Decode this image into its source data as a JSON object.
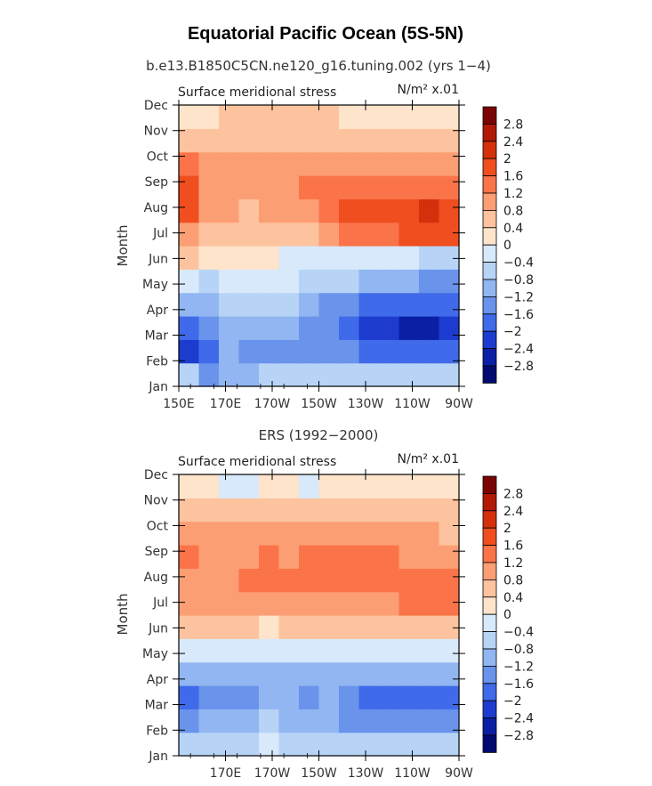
{
  "figure": {
    "title": "Equatorial Pacific Ocean (5S-5N)"
  },
  "colorbar": {
    "levels": [
      "2.8",
      "2.4",
      "2",
      "1.6",
      "1.2",
      "0.8",
      "0.4",
      "0",
      "−0.4",
      "−0.8",
      "−1.2",
      "−1.6",
      "−2",
      "−2.4",
      "−2.8"
    ],
    "colors": [
      "#7a0403",
      "#b01a06",
      "#d4300c",
      "#f04e1e",
      "#fb7348",
      "#fc9e74",
      "#fdc39e",
      "#fde4cb",
      "#d8e9fb",
      "#b7d4f6",
      "#91b6f1",
      "#6a93ec",
      "#3f6ae9",
      "#1d3ccf",
      "#0b1fa4",
      "#020a72"
    ]
  },
  "chart_data": [
    {
      "type": "heatmap",
      "name": "model",
      "subtitle": "b.e13.B1850C5CN.ne120_g16.tuning.002 (yrs 1−4)",
      "left_label": "Surface meridional stress",
      "right_label": "N/m² x.01",
      "ylabel": "Month",
      "xlabel": "",
      "x_ticks": [
        "150E",
        "170E",
        "170W",
        "150W",
        "130W",
        "110W",
        "90W"
      ],
      "y_ticks": [
        "Jan",
        "Feb",
        "Mar",
        "Apr",
        "May",
        "Jun",
        "Jul",
        "Aug",
        "Sep",
        "Oct",
        "Nov",
        "Dec"
      ],
      "x_range": [
        "150E",
        "90W"
      ],
      "y_range": [
        "Jan",
        "Dec"
      ],
      "values": [
        [
          -0.8,
          -1.6,
          -1.2,
          -1.2,
          -0.8,
          -0.8,
          -0.8,
          -0.8,
          -0.8,
          -0.8,
          -0.8,
          -0.8,
          -0.8,
          -0.8
        ],
        [
          -2.4,
          -2.0,
          -1.2,
          -1.6,
          -1.6,
          -1.6,
          -1.6,
          -1.6,
          -1.6,
          -2.0,
          -2.0,
          -2.0,
          -2.0,
          -2.0
        ],
        [
          -2.0,
          -1.6,
          -1.2,
          -1.2,
          -1.2,
          -1.2,
          -1.6,
          -1.6,
          -2.0,
          -2.4,
          -2.4,
          -2.8,
          -2.8,
          -2.4
        ],
        [
          -1.2,
          -1.2,
          -0.8,
          -0.8,
          -0.8,
          -0.8,
          -1.2,
          -1.6,
          -1.6,
          -2.0,
          -2.0,
          -2.0,
          -2.0,
          -2.0
        ],
        [
          -0.4,
          -0.8,
          -0.4,
          -0.4,
          -0.4,
          -0.4,
          -0.8,
          -0.8,
          -0.8,
          -1.2,
          -1.2,
          -1.2,
          -1.6,
          -1.6
        ],
        [
          0.4,
          0.0,
          0.0,
          0.0,
          0.0,
          -0.4,
          -0.4,
          -0.4,
          -0.4,
          -0.4,
          -0.4,
          -0.4,
          -0.8,
          -0.8
        ],
        [
          0.8,
          0.4,
          0.4,
          0.4,
          0.4,
          0.4,
          0.4,
          0.8,
          1.2,
          1.2,
          1.2,
          1.6,
          1.6,
          1.6
        ],
        [
          1.6,
          0.8,
          0.8,
          0.4,
          0.8,
          0.8,
          0.8,
          1.2,
          1.6,
          1.6,
          1.6,
          1.6,
          2.0,
          1.6
        ],
        [
          1.6,
          0.8,
          0.8,
          0.8,
          0.8,
          0.8,
          1.2,
          1.2,
          1.2,
          1.2,
          1.2,
          1.2,
          1.2,
          1.2
        ],
        [
          1.2,
          0.8,
          0.8,
          0.8,
          0.8,
          0.8,
          0.8,
          0.8,
          0.8,
          0.8,
          0.8,
          0.8,
          0.8,
          0.8
        ],
        [
          0.4,
          0.4,
          0.4,
          0.4,
          0.4,
          0.4,
          0.4,
          0.4,
          0.4,
          0.4,
          0.4,
          0.4,
          0.4,
          0.4
        ],
        [
          0.0,
          0.0,
          0.4,
          0.4,
          0.4,
          0.4,
          0.4,
          0.4,
          0.0,
          0.0,
          0.0,
          0.0,
          0.0,
          0.0
        ]
      ]
    },
    {
      "type": "heatmap",
      "name": "observations",
      "subtitle": "ERS (1992−2000)",
      "left_label": "Surface meridional stress",
      "right_label": "N/m² x.01",
      "ylabel": "Month",
      "xlabel": "",
      "x_ticks": [
        "170E",
        "170W",
        "150W",
        "130W",
        "110W",
        "90W"
      ],
      "y_ticks": [
        "Jan",
        "Feb",
        "Mar",
        "Apr",
        "May",
        "Jun",
        "Jul",
        "Aug",
        "Sep",
        "Oct",
        "Nov",
        "Dec"
      ],
      "x_range": [
        "150E",
        "90W"
      ],
      "y_range": [
        "Jan",
        "Dec"
      ],
      "values": [
        [
          -0.8,
          -0.8,
          -0.8,
          -0.8,
          -0.4,
          -0.8,
          -0.8,
          -0.8,
          -0.8,
          -0.8,
          -0.8,
          -0.8,
          -0.8,
          -0.8
        ],
        [
          -1.6,
          -1.2,
          -1.2,
          -1.2,
          -0.8,
          -1.2,
          -1.2,
          -1.2,
          -1.6,
          -1.6,
          -1.6,
          -1.6,
          -1.6,
          -1.6
        ],
        [
          -2.0,
          -1.6,
          -1.6,
          -1.6,
          -1.2,
          -1.2,
          -1.6,
          -1.2,
          -1.6,
          -2.0,
          -2.0,
          -2.0,
          -2.0,
          -2.0
        ],
        [
          -1.2,
          -1.2,
          -1.2,
          -1.2,
          -1.2,
          -1.2,
          -1.2,
          -1.2,
          -1.2,
          -1.2,
          -1.2,
          -1.2,
          -1.2,
          -1.2
        ],
        [
          -0.4,
          -0.4,
          -0.4,
          -0.4,
          -0.4,
          -0.4,
          -0.4,
          -0.4,
          -0.4,
          -0.4,
          -0.4,
          -0.4,
          -0.4,
          -0.4
        ],
        [
          0.4,
          0.4,
          0.4,
          0.4,
          0.0,
          0.4,
          0.4,
          0.4,
          0.4,
          0.4,
          0.4,
          0.4,
          0.4,
          0.4
        ],
        [
          0.8,
          0.8,
          0.8,
          0.8,
          0.8,
          0.8,
          0.8,
          0.8,
          0.8,
          0.8,
          0.8,
          1.2,
          1.2,
          1.2
        ],
        [
          0.8,
          0.8,
          0.8,
          1.2,
          1.2,
          1.2,
          1.2,
          1.2,
          1.2,
          1.2,
          1.2,
          1.2,
          1.2,
          1.2
        ],
        [
          1.2,
          0.8,
          0.8,
          0.8,
          1.2,
          0.8,
          1.2,
          1.2,
          1.2,
          1.2,
          1.2,
          0.8,
          0.8,
          0.8
        ],
        [
          0.8,
          0.8,
          0.8,
          0.8,
          0.8,
          0.8,
          0.8,
          0.8,
          0.8,
          0.8,
          0.8,
          0.8,
          0.8,
          0.4
        ],
        [
          0.4,
          0.4,
          0.4,
          0.4,
          0.4,
          0.4,
          0.4,
          0.4,
          0.4,
          0.4,
          0.4,
          0.4,
          0.4,
          0.4
        ],
        [
          0.0,
          0.0,
          -0.4,
          -0.4,
          0.0,
          0.0,
          -0.4,
          0.0,
          0.0,
          0.0,
          0.0,
          0.0,
          0.0,
          0.0
        ]
      ]
    }
  ]
}
